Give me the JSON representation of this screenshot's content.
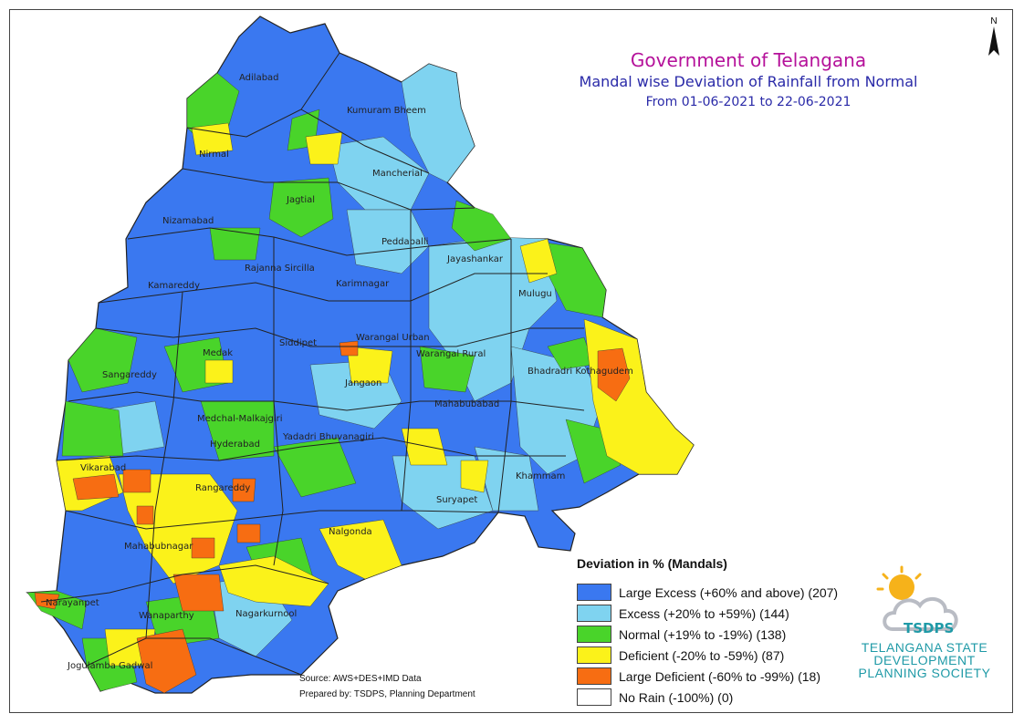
{
  "header": {
    "title": "Government of Telangana",
    "subtitle": "Mandal wise Deviation of Rainfall from Normal",
    "period": "From 01-06-2021 to 22-06-2021"
  },
  "north_arrow": {
    "label": "N"
  },
  "districts": [
    {
      "name": "Adilabad",
      "category": "large_excess"
    },
    {
      "name": "Kumuram Bheem",
      "category": "large_excess"
    },
    {
      "name": "Nirmal",
      "category": "large_excess"
    },
    {
      "name": "Mancherial",
      "category": "excess"
    },
    {
      "name": "Jagtial",
      "category": "normal"
    },
    {
      "name": "Nizamabad",
      "category": "large_excess"
    },
    {
      "name": "Peddapalli",
      "category": "excess"
    },
    {
      "name": "Jayashankar",
      "category": "excess"
    },
    {
      "name": "Rajanna Sircilla",
      "category": "large_excess"
    },
    {
      "name": "Karimnagar",
      "category": "large_excess"
    },
    {
      "name": "Kamareddy",
      "category": "large_excess"
    },
    {
      "name": "Mulugu",
      "category": "excess"
    },
    {
      "name": "Siddipet",
      "category": "large_excess"
    },
    {
      "name": "Warangal Urban",
      "category": "large_excess"
    },
    {
      "name": "Medak",
      "category": "large_excess"
    },
    {
      "name": "Warangal Rural",
      "category": "large_excess"
    },
    {
      "name": "Jangaon",
      "category": "excess"
    },
    {
      "name": "Bhadradri Kothagudem",
      "category": "excess"
    },
    {
      "name": "Sangareddy",
      "category": "large_excess"
    },
    {
      "name": "Mahabubabad",
      "category": "large_excess"
    },
    {
      "name": "Medchal-Malkajgiri",
      "category": "large_excess"
    },
    {
      "name": "Hyderabad",
      "category": "normal"
    },
    {
      "name": "Yadadri Bhuvanagiri",
      "category": "large_excess"
    },
    {
      "name": "Vikarabad",
      "category": "normal"
    },
    {
      "name": "Khammam",
      "category": "large_excess"
    },
    {
      "name": "Rangareddy",
      "category": "deficient"
    },
    {
      "name": "Suryapet",
      "category": "large_excess"
    },
    {
      "name": "Nalgonda",
      "category": "large_excess"
    },
    {
      "name": "Mahabubnagar",
      "category": "large_excess"
    },
    {
      "name": "Narayanpet",
      "category": "large_excess"
    },
    {
      "name": "Nagarkurnool",
      "category": "deficient"
    },
    {
      "name": "Wanaparthy",
      "category": "normal"
    },
    {
      "name": "Jogulamba Gadwal",
      "category": "large_excess"
    }
  ],
  "legend": {
    "title": "Deviation in % (Mandals)",
    "items": [
      {
        "key": "large_excess",
        "label": "Large Excess (+60% and above) (207)",
        "color": "#3a78f0"
      },
      {
        "key": "excess",
        "label": "Excess (+20% to +59%) (144)",
        "color": "#7fd3f0"
      },
      {
        "key": "normal",
        "label": "Normal (+19% to -19%) (138)",
        "color": "#49d42a"
      },
      {
        "key": "deficient",
        "label": "Deficient (-20% to -59%) (87)",
        "color": "#fbf21a"
      },
      {
        "key": "large_deficient",
        "label": "Large Deficient (-60% to -99%) (18)",
        "color": "#f76d12"
      },
      {
        "key": "no_rain",
        "label": "No Rain (-100%) (0)",
        "color": "#ffffff"
      }
    ]
  },
  "credits": {
    "source": "Source: AWS+DES+IMD Data",
    "prepared": "Prepared by: TSDPS, Planning Department"
  },
  "logo": {
    "badge": "TSDPS",
    "line1": "TELANGANA STATE",
    "line2": "DEVELOPMENT",
    "line3": "PLANNING SOCIETY"
  }
}
